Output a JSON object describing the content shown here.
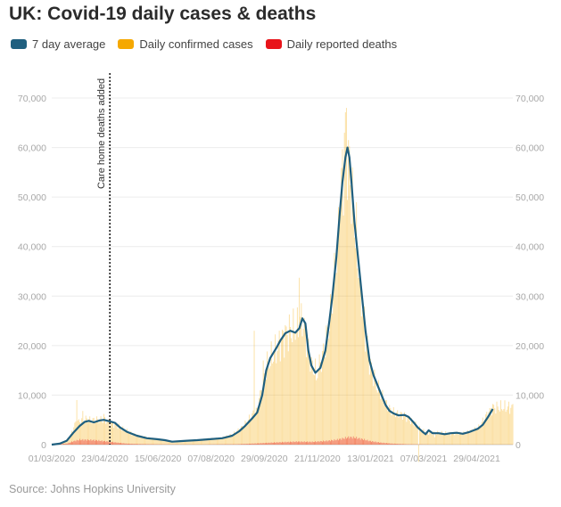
{
  "header": {
    "title": "UK: Covid-19 daily cases & deaths"
  },
  "legend": [
    {
      "label": "7 day average",
      "color": "#1f5f7f"
    },
    {
      "label": "Daily confirmed cases",
      "color": "#f5a800"
    },
    {
      "label": "Daily reported deaths",
      "color": "#e8141a"
    }
  ],
  "footer": {
    "source": "Source: Johns Hopkins University"
  },
  "chart_data": {
    "type": "bar",
    "title": "UK: Covid-19 daily cases & deaths",
    "xlabel": "",
    "ylabel": "",
    "ylim": [
      0,
      70000
    ],
    "y_ticks": [
      0,
      10000,
      20000,
      30000,
      40000,
      50000,
      60000,
      70000
    ],
    "y_tick_labels": [
      "0",
      "10,000",
      "20,000",
      "30,000",
      "40,000",
      "50,000",
      "60,000",
      "70,000"
    ],
    "x_range_days": [
      0,
      460
    ],
    "x_tick_labels": [
      "01/03/2020",
      "23/04/2020",
      "15/06/2020",
      "07/08/2020",
      "29/09/2020",
      "21/11/2020",
      "13/01/2021",
      "07/03/2021",
      "29/04/2021"
    ],
    "x_tick_days": [
      0,
      53,
      106,
      159,
      212,
      265,
      318,
      371,
      424
    ],
    "annotation": {
      "label": "Care home deaths added",
      "day": 58
    },
    "series": [
      {
        "name": "7 day average",
        "type": "line",
        "points": [
          [
            0,
            0
          ],
          [
            8,
            200
          ],
          [
            15,
            800
          ],
          [
            22,
            2500
          ],
          [
            28,
            3800
          ],
          [
            33,
            4600
          ],
          [
            37,
            4800
          ],
          [
            42,
            4500
          ],
          [
            48,
            4900
          ],
          [
            52,
            5000
          ],
          [
            58,
            4700
          ],
          [
            63,
            4400
          ],
          [
            68,
            3500
          ],
          [
            75,
            2600
          ],
          [
            85,
            1800
          ],
          [
            95,
            1300
          ],
          [
            105,
            1100
          ],
          [
            113,
            900
          ],
          [
            120,
            600
          ],
          [
            128,
            700
          ],
          [
            135,
            800
          ],
          [
            145,
            900
          ],
          [
            158,
            1100
          ],
          [
            170,
            1300
          ],
          [
            180,
            1800
          ],
          [
            187,
            2700
          ],
          [
            193,
            3800
          ],
          [
            200,
            5300
          ],
          [
            205,
            6500
          ],
          [
            210,
            10000
          ],
          [
            214,
            15000
          ],
          [
            218,
            17500
          ],
          [
            224,
            19500
          ],
          [
            228,
            21000
          ],
          [
            233,
            22500
          ],
          [
            238,
            23000
          ],
          [
            243,
            22600
          ],
          [
            247,
            23500
          ],
          [
            250,
            25500
          ],
          [
            253,
            24500
          ],
          [
            256,
            19000
          ],
          [
            259,
            16000
          ],
          [
            263,
            14500
          ],
          [
            268,
            15500
          ],
          [
            273,
            19000
          ],
          [
            277,
            25000
          ],
          [
            280,
            30000
          ],
          [
            284,
            38000
          ],
          [
            287,
            46000
          ],
          [
            290,
            53000
          ],
          [
            293,
            58000
          ],
          [
            295,
            60000
          ],
          [
            297,
            58000
          ],
          [
            299,
            53000
          ],
          [
            302,
            45000
          ],
          [
            306,
            37000
          ],
          [
            310,
            29000
          ],
          [
            313,
            23000
          ],
          [
            317,
            17000
          ],
          [
            321,
            14000
          ],
          [
            325,
            12000
          ],
          [
            329,
            10000
          ],
          [
            333,
            8000
          ],
          [
            337,
            6800
          ],
          [
            341,
            6300
          ],
          [
            346,
            5900
          ],
          [
            352,
            6000
          ],
          [
            356,
            5600
          ],
          [
            361,
            4500
          ],
          [
            365,
            3500
          ],
          [
            370,
            2600
          ],
          [
            373,
            2100
          ],
          [
            376,
            2900
          ],
          [
            380,
            2300
          ],
          [
            386,
            2300
          ],
          [
            392,
            2100
          ],
          [
            398,
            2300
          ],
          [
            404,
            2400
          ],
          [
            410,
            2200
          ],
          [
            416,
            2500
          ],
          [
            420,
            2800
          ],
          [
            425,
            3200
          ],
          [
            430,
            4000
          ],
          [
            435,
            5500
          ],
          [
            440,
            7200
          ]
        ]
      },
      {
        "name": "Daily confirmed cases",
        "type": "bar",
        "anchors": [
          [
            0,
            0
          ],
          [
            10,
            300
          ],
          [
            18,
            1500
          ],
          [
            24,
            4500
          ],
          [
            30,
            4800
          ],
          [
            35,
            5200
          ],
          [
            40,
            4900
          ],
          [
            45,
            5000
          ],
          [
            50,
            4900
          ],
          [
            55,
            4800
          ],
          [
            60,
            4300
          ],
          [
            65,
            4000
          ],
          [
            70,
            3200
          ],
          [
            78,
            2400
          ],
          [
            88,
            1700
          ],
          [
            98,
            1300
          ],
          [
            108,
            1000
          ],
          [
            118,
            700
          ],
          [
            128,
            700
          ],
          [
            140,
            900
          ],
          [
            155,
            1100
          ],
          [
            168,
            1300
          ],
          [
            180,
            2000
          ],
          [
            190,
            3500
          ],
          [
            198,
            5500
          ],
          [
            205,
            7000
          ],
          [
            210,
            12000
          ],
          [
            215,
            16000
          ],
          [
            222,
            18500
          ],
          [
            230,
            21500
          ],
          [
            238,
            23000
          ],
          [
            245,
            23500
          ],
          [
            250,
            25500
          ],
          [
            255,
            20000
          ],
          [
            260,
            15500
          ],
          [
            266,
            15500
          ],
          [
            272,
            19000
          ],
          [
            278,
            26000
          ],
          [
            282,
            33000
          ],
          [
            286,
            42000
          ],
          [
            290,
            55000
          ],
          [
            293,
            62000
          ],
          [
            296,
            60000
          ],
          [
            299,
            52000
          ],
          [
            303,
            43000
          ],
          [
            308,
            32000
          ],
          [
            313,
            23000
          ],
          [
            318,
            16000
          ],
          [
            324,
            12000
          ],
          [
            330,
            9500
          ],
          [
            336,
            7300
          ],
          [
            344,
            6200
          ],
          [
            352,
            5900
          ],
          [
            360,
            4500
          ],
          [
            368,
            3000
          ],
          [
            374,
            2500
          ],
          [
            380,
            2400
          ],
          [
            390,
            2300
          ],
          [
            400,
            2300
          ],
          [
            410,
            2300
          ],
          [
            418,
            2700
          ],
          [
            426,
            3500
          ],
          [
            434,
            6000
          ],
          [
            440,
            7500
          ]
        ],
        "highlights": [
          [
            25,
            9000
          ],
          [
            31,
            6800
          ],
          [
            52,
            6200
          ],
          [
            202,
            23000
          ],
          [
            211,
            17000
          ],
          [
            247,
            33700
          ],
          [
            260,
            17000
          ],
          [
            264,
            13000
          ],
          [
            283,
            34500
          ],
          [
            287,
            46500
          ],
          [
            292,
            63000
          ],
          [
            294,
            68000
          ],
          [
            296,
            61500
          ],
          [
            300,
            56000
          ],
          [
            308,
            33000
          ],
          [
            366,
            -3500
          ],
          [
            382,
            1500
          ]
        ]
      },
      {
        "name": "Daily reported deaths",
        "type": "bar",
        "anchors": [
          [
            0,
            0
          ],
          [
            15,
            200
          ],
          [
            22,
            700
          ],
          [
            28,
            980
          ],
          [
            35,
            950
          ],
          [
            42,
            900
          ],
          [
            50,
            750
          ],
          [
            57,
            600
          ],
          [
            65,
            400
          ],
          [
            75,
            200
          ],
          [
            90,
            100
          ],
          [
            110,
            50
          ],
          [
            150,
            30
          ],
          [
            185,
            80
          ],
          [
            205,
            250
          ],
          [
            225,
            450
          ],
          [
            245,
            600
          ],
          [
            260,
            550
          ],
          [
            275,
            750
          ],
          [
            285,
            1000
          ],
          [
            292,
            1300
          ],
          [
            297,
            1500
          ],
          [
            303,
            1400
          ],
          [
            310,
            1100
          ],
          [
            318,
            700
          ],
          [
            328,
            400
          ],
          [
            340,
            200
          ],
          [
            355,
            70
          ],
          [
            380,
            20
          ],
          [
            440,
            15
          ]
        ]
      }
    ]
  }
}
